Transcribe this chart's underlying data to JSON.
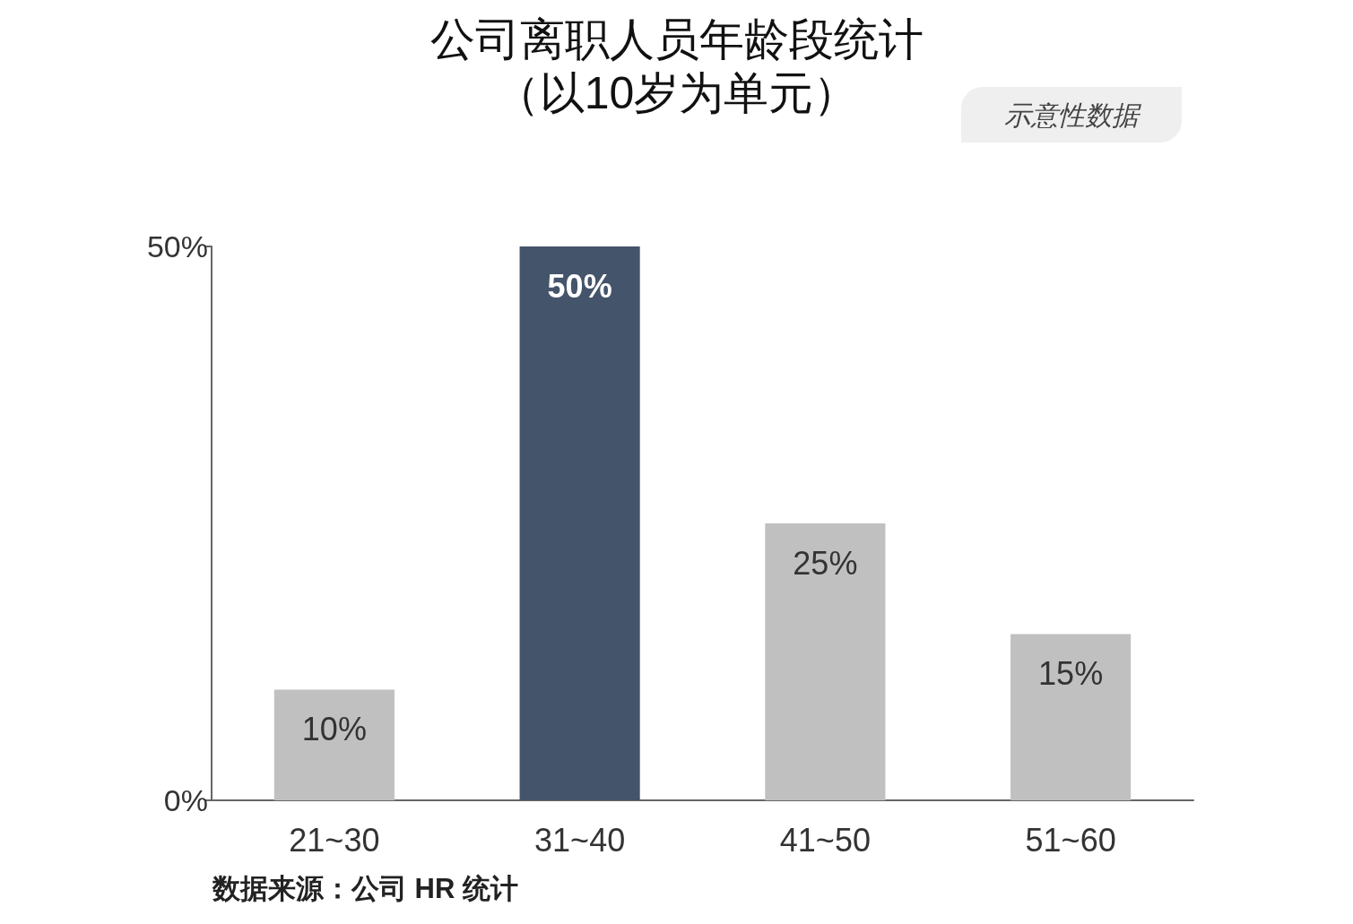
{
  "chart_data": {
    "type": "bar",
    "title": "公司离职人员年龄段统计",
    "subtitle": "（以10岁为单元）",
    "categories": [
      "21~30",
      "31~40",
      "41~50",
      "51~60"
    ],
    "values": [
      10,
      50,
      25,
      15
    ],
    "colors": [
      "#c0c0c0",
      "#44546a",
      "#c0c0c0",
      "#c0c0c0"
    ],
    "value_labels": [
      "10%",
      "50%",
      "25%",
      "15%"
    ],
    "ylim": [
      0,
      50
    ],
    "yticks": [
      {
        "value": 0,
        "label": "0%"
      },
      {
        "value": 50,
        "label": "50%"
      }
    ],
    "grid": false,
    "annotations": [
      "示意性数据",
      "数据来源：公司 HR 统计"
    ]
  }
}
